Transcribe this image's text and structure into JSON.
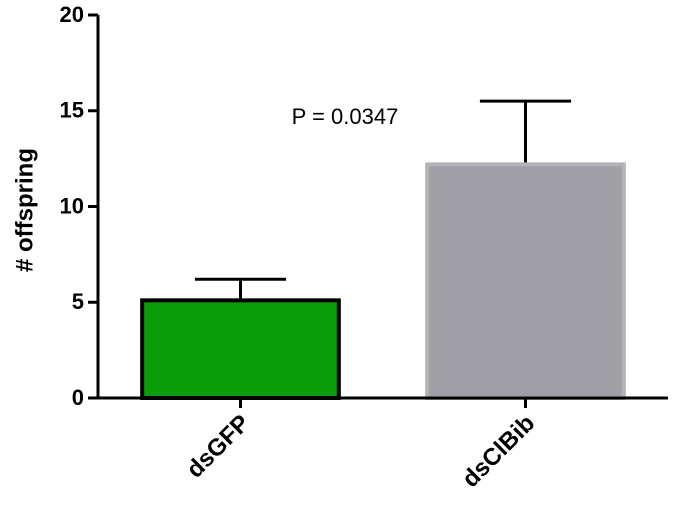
{
  "chart_data": {
    "type": "bar",
    "ylabel": "# offspring",
    "categories": [
      "dsGFP",
      "dsClBib"
    ],
    "values": [
      5.1,
      12.2
    ],
    "errors": [
      1.1,
      3.3
    ],
    "colors": [
      "#0a9e0a",
      "#a09fa5"
    ],
    "edgecolors": [
      "#000000",
      "#b4b3b8"
    ],
    "ylim": [
      0,
      20
    ],
    "yticks": [
      0,
      5,
      10,
      15,
      20
    ],
    "annotation": "P = 0.0347"
  }
}
